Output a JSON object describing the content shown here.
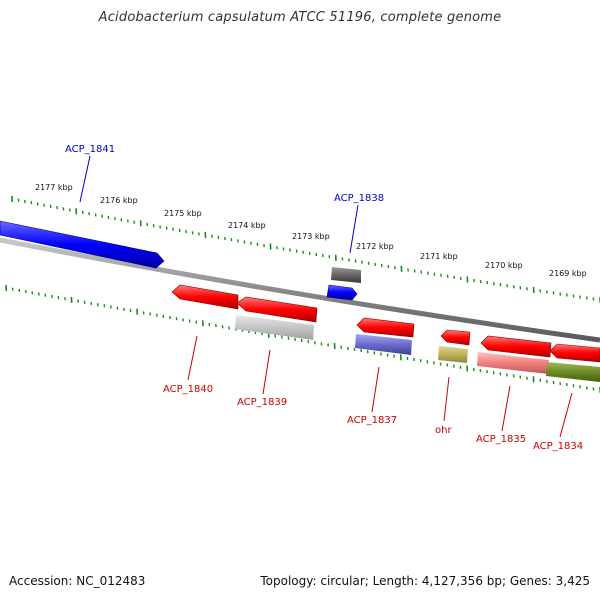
{
  "title": "Acidobacterium capsulatum ATCC 51196, complete genome",
  "footer": {
    "accession": "Accession: NC_012483",
    "summary": "Topology: circular; Length: 4,127,356 bp; Genes: 3,425"
  },
  "ruler_labels": [
    "2177 kbp",
    "2176 kbp",
    "2175 kbp",
    "2174 kbp",
    "2173 kbp",
    "2172 kbp",
    "2171 kbp",
    "2170 kbp",
    "2169 kbp"
  ],
  "gene_labels": {
    "acp1841": "ACP_1841",
    "acp1838": "ACP_1838",
    "acp1840": "ACP_1840",
    "acp1839": "ACP_1839",
    "acp1837": "ACP_1837",
    "ohr": "ohr",
    "acp1835": "ACP_1835",
    "acp1834": "ACP_1834"
  },
  "colors": {
    "forward_strand": "#0000ff",
    "reverse_strand": "#ff0000",
    "forward_label": "#0000cc",
    "reverse_label": "#cc0000",
    "tick": "#1a8a1a",
    "backbone": "#808080"
  }
}
